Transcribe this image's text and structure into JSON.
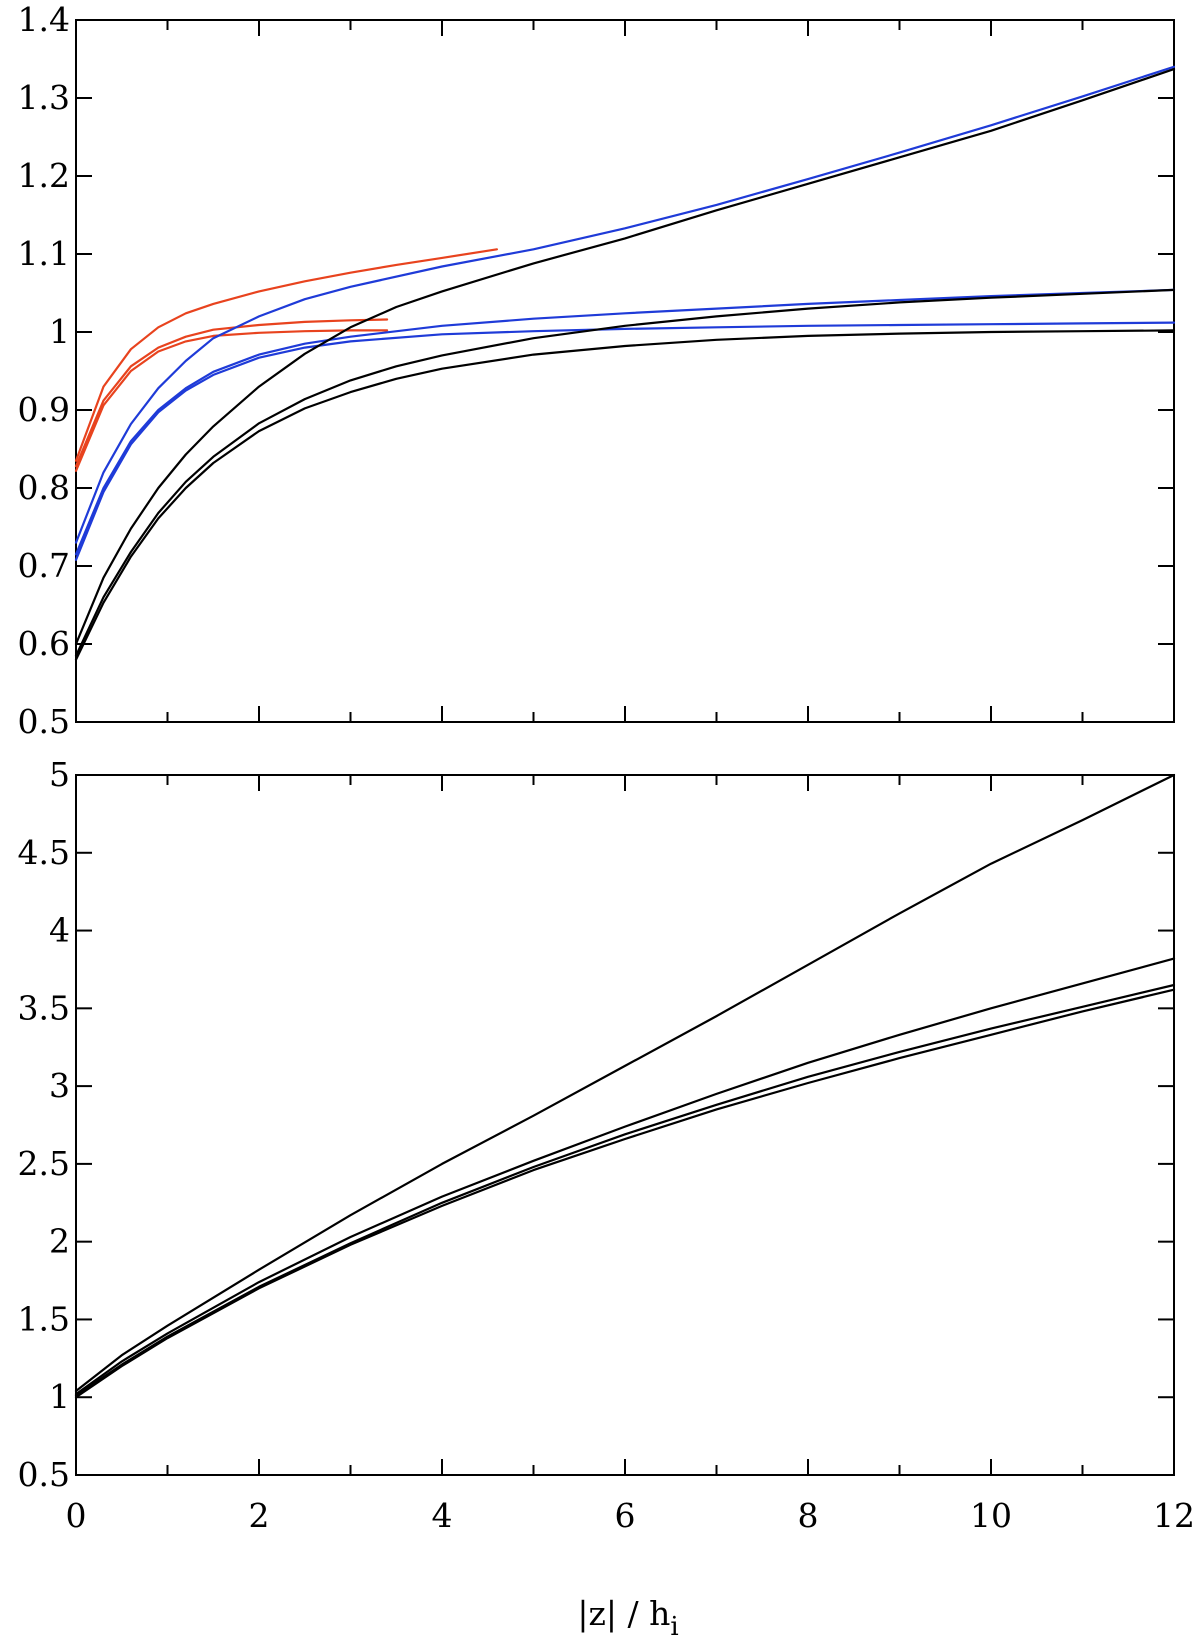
{
  "chart_data": [
    {
      "type": "line",
      "xlabel": "|z| / h",
      "xlabel_sub": "i",
      "xlim": [
        0,
        12
      ],
      "ylim": [
        0.5,
        1.4
      ],
      "x_ticks": [
        "0",
        "2",
        "4",
        "6",
        "8",
        "10",
        "12"
      ],
      "y_ticks": [
        "0.5",
        "0.6",
        "0.7",
        "0.8",
        "0.9",
        "1",
        "1.1",
        "1.2",
        "1.3",
        "1.4"
      ],
      "grid": false,
      "series": [
        {
          "color": "#e8431e",
          "x": [
            0,
            0.3,
            0.6,
            0.9,
            1.2,
            1.5,
            2,
            2.5,
            3,
            3.5,
            4,
            4.6
          ],
          "y": [
            0.835,
            0.93,
            0.978,
            1.006,
            1.024,
            1.036,
            1.052,
            1.065,
            1.076,
            1.086,
            1.095,
            1.106
          ]
        },
        {
          "color": "#e8431e",
          "x": [
            0,
            0.3,
            0.6,
            0.9,
            1.2,
            1.5,
            2,
            2.5,
            3,
            3.4
          ],
          "y": [
            0.828,
            0.912,
            0.956,
            0.98,
            0.994,
            1.003,
            1.009,
            1.013,
            1.015,
            1.016
          ]
        },
        {
          "color": "#e8431e",
          "x": [
            0,
            0.3,
            0.6,
            0.9,
            1.2,
            1.5,
            2,
            2.5,
            3,
            3.4
          ],
          "y": [
            0.822,
            0.906,
            0.95,
            0.975,
            0.988,
            0.995,
            0.999,
            1.001,
            1.002,
            1.002
          ]
        },
        {
          "color": "#1f3bd8",
          "x": [
            0,
            0.3,
            0.6,
            0.9,
            1.2,
            1.5,
            2,
            2.5,
            3,
            4,
            5,
            6,
            7,
            8,
            9,
            10,
            11,
            12
          ],
          "y": [
            0.73,
            0.82,
            0.882,
            0.928,
            0.963,
            0.992,
            1.02,
            1.042,
            1.058,
            1.084,
            1.106,
            1.133,
            1.163,
            1.196,
            1.23,
            1.265,
            1.302,
            1.34
          ]
        },
        {
          "color": "#1f3bd8",
          "x": [
            0,
            0.3,
            0.6,
            0.9,
            1.2,
            1.5,
            2,
            2.5,
            3,
            4,
            5,
            6,
            7,
            8,
            9,
            10,
            11,
            12
          ],
          "y": [
            0.715,
            0.8,
            0.86,
            0.9,
            0.928,
            0.949,
            0.971,
            0.985,
            0.994,
            1.008,
            1.017,
            1.024,
            1.03,
            1.036,
            1.041,
            1.046,
            1.05,
            1.054
          ]
        },
        {
          "color": "#1f3bd8",
          "x": [
            0,
            0.3,
            0.6,
            0.9,
            1.2,
            1.5,
            2,
            2.5,
            3,
            4,
            5,
            6,
            7,
            8,
            9,
            10,
            11,
            12
          ],
          "y": [
            0.708,
            0.795,
            0.856,
            0.897,
            0.925,
            0.945,
            0.967,
            0.98,
            0.988,
            0.997,
            1.001,
            1.004,
            1.006,
            1.008,
            1.009,
            1.01,
            1.011,
            1.012
          ]
        },
        {
          "color": "#000000",
          "x": [
            0,
            0.3,
            0.6,
            0.9,
            1.2,
            1.5,
            2,
            2.5,
            3,
            3.5,
            4,
            5,
            6,
            7,
            8,
            9,
            10,
            11,
            12
          ],
          "y": [
            0.6,
            0.685,
            0.748,
            0.8,
            0.843,
            0.879,
            0.93,
            0.972,
            1.006,
            1.032,
            1.052,
            1.088,
            1.12,
            1.156,
            1.19,
            1.224,
            1.258,
            1.297,
            1.337
          ]
        },
        {
          "color": "#000000",
          "x": [
            0,
            0.3,
            0.6,
            0.9,
            1.2,
            1.5,
            2,
            2.5,
            3,
            3.5,
            4,
            5,
            6,
            7,
            8,
            9,
            10,
            11,
            12
          ],
          "y": [
            0.585,
            0.66,
            0.718,
            0.768,
            0.808,
            0.84,
            0.883,
            0.914,
            0.938,
            0.956,
            0.97,
            0.992,
            1.008,
            1.02,
            1.03,
            1.038,
            1.044,
            1.049,
            1.054
          ]
        },
        {
          "color": "#000000",
          "x": [
            0,
            0.3,
            0.6,
            0.9,
            1.2,
            1.5,
            2,
            2.5,
            3,
            3.5,
            4,
            5,
            6,
            7,
            8,
            9,
            10,
            11,
            12
          ],
          "y": [
            0.58,
            0.653,
            0.712,
            0.761,
            0.8,
            0.832,
            0.873,
            0.902,
            0.923,
            0.94,
            0.953,
            0.971,
            0.982,
            0.99,
            0.995,
            0.998,
            1.0,
            1.001,
            1.002
          ]
        }
      ]
    },
    {
      "type": "line",
      "xlabel": "|z| / h",
      "xlabel_sub": "i",
      "xlim": [
        0,
        12
      ],
      "ylim": [
        0.5,
        5
      ],
      "x_ticks": [
        "0",
        "2",
        "4",
        "6",
        "8",
        "10",
        "12"
      ],
      "y_ticks": [
        "0.5",
        "1",
        "1.5",
        "2",
        "2.5",
        "3",
        "3.5",
        "4",
        "4.5",
        "5"
      ],
      "grid": false,
      "series": [
        {
          "color": "#000000",
          "x": [
            0,
            0.5,
            1,
            2,
            3,
            4,
            5,
            6,
            7,
            8,
            9,
            10,
            11,
            12
          ],
          "y": [
            1.04,
            1.27,
            1.46,
            1.82,
            2.17,
            2.5,
            2.81,
            3.13,
            3.45,
            3.78,
            4.11,
            4.43,
            4.71,
            5.0
          ]
        },
        {
          "color": "#000000",
          "x": [
            0,
            0.5,
            1,
            2,
            3,
            4,
            5,
            6,
            7,
            8,
            9,
            10,
            11,
            12
          ],
          "y": [
            1.02,
            1.23,
            1.41,
            1.74,
            2.03,
            2.29,
            2.52,
            2.74,
            2.95,
            3.15,
            3.33,
            3.5,
            3.66,
            3.82
          ]
        },
        {
          "color": "#000000",
          "x": [
            0,
            0.5,
            1,
            2,
            3,
            4,
            5,
            6,
            7,
            8,
            9,
            10,
            11,
            12
          ],
          "y": [
            1.01,
            1.21,
            1.39,
            1.71,
            1.99,
            2.25,
            2.48,
            2.69,
            2.88,
            3.06,
            3.22,
            3.37,
            3.51,
            3.65
          ]
        },
        {
          "color": "#000000",
          "x": [
            0,
            0.5,
            1,
            2,
            3,
            4,
            5,
            6,
            7,
            8,
            9,
            10,
            11,
            12
          ],
          "y": [
            1.0,
            1.2,
            1.38,
            1.7,
            1.98,
            2.23,
            2.46,
            2.66,
            2.85,
            3.02,
            3.18,
            3.33,
            3.48,
            3.62
          ]
        }
      ]
    }
  ]
}
